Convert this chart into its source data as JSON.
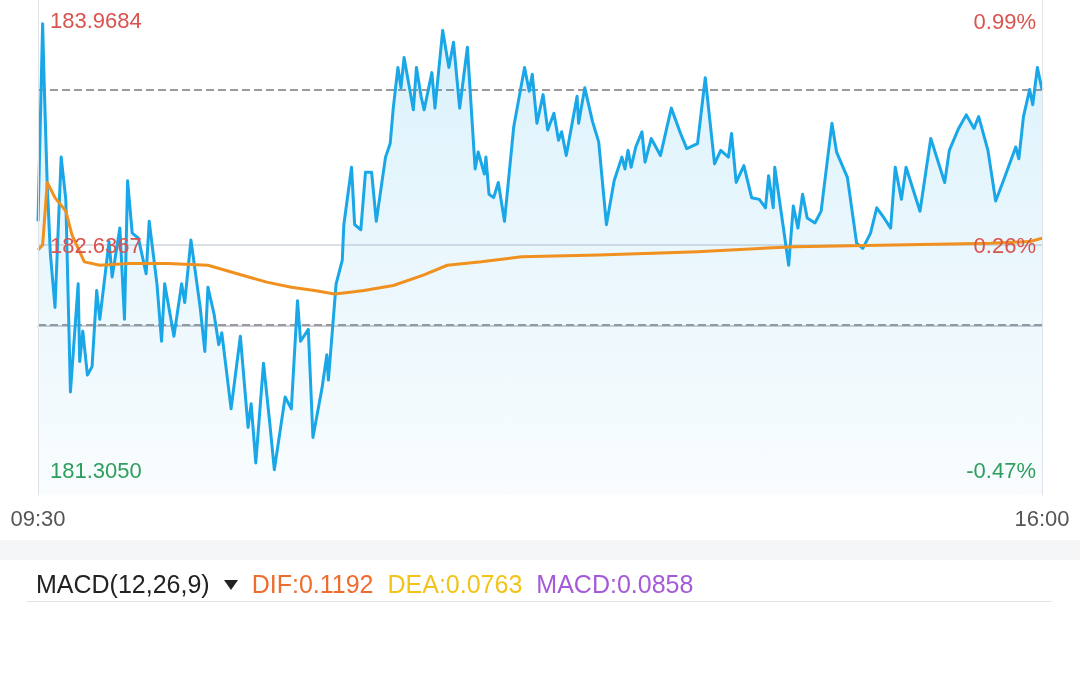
{
  "chart_data": [
    {
      "type": "area",
      "xlim": [
        9.5,
        16
      ],
      "xticks": [
        {
          "value": 9.5,
          "label": "09:30"
        },
        {
          "value": 16,
          "label": "16:00"
        }
      ],
      "ylim": [
        181.16,
        184.09
      ],
      "yticks": [
        {
          "value": 181.305,
          "label": "181.3050"
        },
        {
          "value": 182.17,
          "label": null
        },
        {
          "value": 182.6367,
          "label": "182.6367"
        },
        {
          "value": 183.56,
          "label": null
        },
        {
          "value": 183.9684,
          "label": "183.9684"
        }
      ],
      "y2lim": [
        -0.55,
        1.06
      ],
      "y2ticks": [
        {
          "value": -0.47,
          "label": "-0.47%"
        },
        {
          "value": 0.26,
          "label": "0.26%"
        },
        {
          "value": 0.99,
          "label": "0.99%"
        }
      ],
      "grid": true,
      "marker": "none",
      "ref_lines": [
        {
          "axis": "y",
          "value": 182.6367,
          "color": "#cfd6de",
          "line_style": "solid"
        }
      ],
      "series": [
        {
          "type": "area",
          "color": "#1aa7e8",
          "x": [
            9.5,
            9.53,
            9.54,
            9.56,
            9.58,
            9.61,
            9.65,
            9.68,
            9.71,
            9.76,
            9.77,
            9.79,
            9.82,
            9.85,
            9.88,
            9.9,
            9.96,
            9.98,
            10.03,
            10.06,
            10.08,
            10.11,
            10.15,
            10.2,
            10.22,
            10.27,
            10.3,
            10.32,
            10.38,
            10.43,
            10.45,
            10.49,
            10.55,
            10.58,
            10.6,
            10.64,
            10.67,
            10.69,
            10.75,
            10.81,
            10.86,
            10.88,
            10.91,
            10.96,
            11.0,
            11.03,
            11.1,
            11.14,
            11.18,
            11.2,
            11.25,
            11.28,
            11.34,
            11.37,
            11.38,
            11.43,
            11.47,
            11.48,
            11.53,
            11.55,
            11.59,
            11.62,
            11.66,
            11.69,
            11.75,
            11.78,
            11.8,
            11.83,
            11.85,
            11.87,
            11.93,
            11.95,
            11.98,
            12.0,
            12.05,
            12.07,
            12.12,
            12.16,
            12.19,
            12.23,
            12.28,
            12.33,
            12.35,
            12.39,
            12.4,
            12.42,
            12.45,
            12.48,
            12.52,
            12.58,
            12.65,
            12.68,
            12.7,
            12.73,
            12.77,
            12.8,
            12.84,
            12.87,
            12.89,
            12.92,
            12.96,
            12.99,
            13.0,
            13.04,
            13.09,
            13.13,
            13.18,
            13.23,
            13.28,
            13.3,
            13.32,
            13.34,
            13.37,
            13.41,
            13.43,
            13.47,
            13.53,
            13.6,
            13.66,
            13.7,
            13.77,
            13.82,
            13.88,
            13.92,
            13.97,
            13.99,
            14.02,
            14.07,
            14.12,
            14.17,
            14.21,
            14.23,
            14.26,
            14.27,
            14.36,
            14.39,
            14.42,
            14.45,
            14.48,
            14.53,
            14.57,
            14.64,
            14.67,
            14.74,
            14.8,
            14.84,
            14.89,
            14.93,
            14.97,
            15.02,
            15.05,
            15.09,
            15.12,
            15.21,
            15.28,
            15.37,
            15.4,
            15.46,
            15.51,
            15.56,
            15.59,
            15.65,
            15.7,
            15.75,
            15.83,
            15.85,
            15.88,
            15.92,
            15.94,
            15.97,
            16.0
          ],
          "values": [
            182.78,
            183.95,
            183.6,
            182.99,
            182.59,
            182.27,
            183.16,
            182.91,
            181.77,
            182.41,
            181.95,
            182.13,
            181.87,
            181.92,
            182.37,
            182.2,
            182.66,
            182.45,
            182.74,
            182.2,
            183.02,
            182.71,
            182.68,
            182.47,
            182.78,
            182.41,
            182.07,
            182.41,
            182.1,
            182.41,
            182.3,
            182.67,
            182.27,
            182.01,
            182.39,
            182.23,
            182.05,
            182.12,
            181.67,
            182.1,
            181.56,
            181.7,
            181.35,
            181.94,
            181.59,
            181.31,
            181.74,
            181.67,
            182.31,
            182.07,
            182.14,
            181.5,
            181.8,
            181.99,
            181.84,
            182.41,
            182.55,
            182.76,
            183.1,
            182.76,
            182.73,
            183.07,
            183.07,
            182.78,
            183.16,
            183.24,
            183.45,
            183.69,
            183.57,
            183.75,
            183.44,
            183.69,
            183.52,
            183.44,
            183.66,
            183.45,
            183.91,
            183.69,
            183.84,
            183.45,
            183.81,
            183.09,
            183.19,
            183.06,
            183.16,
            182.94,
            182.92,
            183.01,
            182.78,
            183.34,
            183.69,
            183.55,
            183.65,
            183.36,
            183.53,
            183.32,
            183.42,
            183.26,
            183.31,
            183.17,
            183.37,
            183.52,
            183.36,
            183.57,
            183.37,
            183.25,
            182.76,
            183.02,
            183.16,
            183.09,
            183.2,
            183.1,
            183.22,
            183.31,
            183.13,
            183.27,
            183.17,
            183.45,
            183.3,
            183.21,
            183.24,
            183.63,
            183.12,
            183.2,
            183.16,
            183.3,
            183.01,
            183.11,
            182.92,
            182.91,
            182.86,
            183.05,
            182.86,
            183.1,
            182.52,
            182.87,
            182.74,
            182.94,
            182.8,
            182.77,
            182.84,
            183.36,
            183.19,
            183.04,
            182.65,
            182.62,
            182.71,
            182.86,
            182.81,
            182.74,
            183.1,
            182.91,
            183.1,
            182.84,
            183.27,
            183.01,
            183.2,
            183.33,
            183.41,
            183.33,
            183.4,
            183.2,
            182.9,
            183.02,
            183.22,
            183.15,
            183.4,
            183.56,
            183.47,
            183.69,
            183.56
          ]
        },
        {
          "type": "line",
          "color": "#f0901e",
          "x": [
            9.5,
            9.53,
            9.56,
            9.61,
            9.68,
            9.72,
            9.8,
            9.9,
            10.09,
            10.34,
            10.6,
            10.79,
            10.98,
            11.14,
            11.29,
            11.42,
            11.52,
            11.61,
            11.8,
            11.99,
            12.15,
            12.37,
            12.63,
            13.13,
            13.77,
            14.4,
            15.04,
            15.67,
            15.92,
            16.0
          ],
          "values": [
            182.61,
            182.64,
            183.01,
            182.92,
            182.84,
            182.7,
            182.54,
            182.52,
            182.53,
            182.53,
            182.52,
            182.47,
            182.42,
            182.39,
            182.37,
            182.35,
            182.36,
            182.37,
            182.4,
            182.46,
            182.52,
            182.54,
            182.57,
            182.58,
            182.6,
            182.63,
            182.64,
            182.65,
            182.66,
            182.68
          ]
        }
      ]
    },
    {
      "type": "other",
      "title": "MACD(12,26,9)",
      "annotations": [
        "DIF:0.1192",
        "DEA:0.0763",
        "MACD:0.0858"
      ]
    }
  ]
}
